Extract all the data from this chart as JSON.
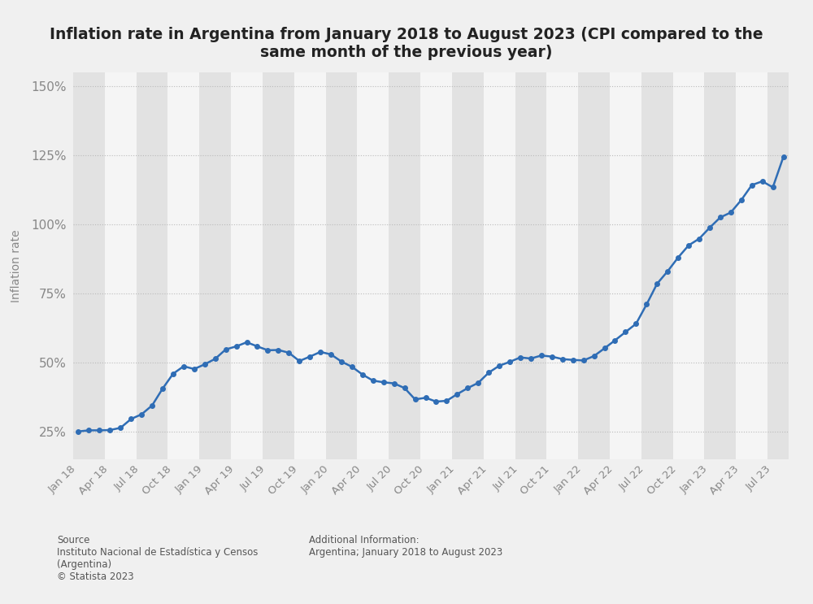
{
  "title": "Inflation rate in Argentina from January 2018 to August 2023 (CPI compared to the\nsame month of the previous year)",
  "ylabel": "Inflation rate",
  "source_text": "Source\nInstituto Nacional de Estadística y Censos\n(Argentina)\n© Statista 2023",
  "additional_text": "Additional Information:\nArgentina; January 2018 to August 2023",
  "line_color": "#2f6db5",
  "marker_color": "#2f6db5",
  "bg_color": "#f0f0f0",
  "plot_bg_color": "#f0f0f0",
  "grid_color": "#bbbbbb",
  "col_band_dark": "#e2e2e2",
  "col_band_light": "#f5f5f5",
  "yticks": [
    25,
    50,
    75,
    100,
    125,
    150
  ],
  "ylim": [
    15,
    155
  ],
  "values": [
    25.0,
    25.4,
    25.4,
    25.5,
    26.3,
    29.5,
    31.2,
    34.4,
    40.5,
    45.9,
    48.6,
    47.6,
    49.3,
    51.3,
    54.7,
    55.8,
    57.3,
    55.8,
    54.4,
    54.5,
    53.5,
    50.5,
    52.1,
    53.8,
    52.9,
    50.3,
    48.4,
    45.6,
    43.4,
    42.8,
    42.4,
    40.7,
    36.6,
    37.2,
    35.8,
    36.1,
    38.5,
    40.7,
    42.6,
    46.3,
    48.8,
    50.2,
    51.8,
    51.4,
    52.5,
    52.1,
    51.2,
    50.9,
    50.7,
    52.3,
    55.1,
    58.0,
    61.0,
    64.0,
    71.0,
    78.5,
    83.0,
    88.0,
    92.4,
    94.8,
    98.8,
    102.5,
    104.3,
    108.8,
    114.2,
    115.6,
    113.4,
    124.4
  ],
  "xtick_labels": [
    "Jan 18",
    "Apr 18",
    "Jul 18",
    "Oct 18",
    "Jan 19",
    "Apr 19",
    "Jul 19",
    "Oct 19",
    "Jan 20",
    "Apr 20",
    "Jul 20",
    "Oct 20",
    "Jan 21",
    "Apr 21",
    "Jul 21",
    "Oct 21",
    "Jan 22",
    "Apr 22",
    "Jul 22",
    "Oct 22",
    "Jan 23",
    "Apr 23",
    "Jul 23"
  ],
  "xtick_positions": [
    0,
    3,
    6,
    9,
    12,
    15,
    18,
    21,
    24,
    27,
    30,
    33,
    36,
    39,
    42,
    45,
    48,
    51,
    54,
    57,
    60,
    63,
    66
  ]
}
